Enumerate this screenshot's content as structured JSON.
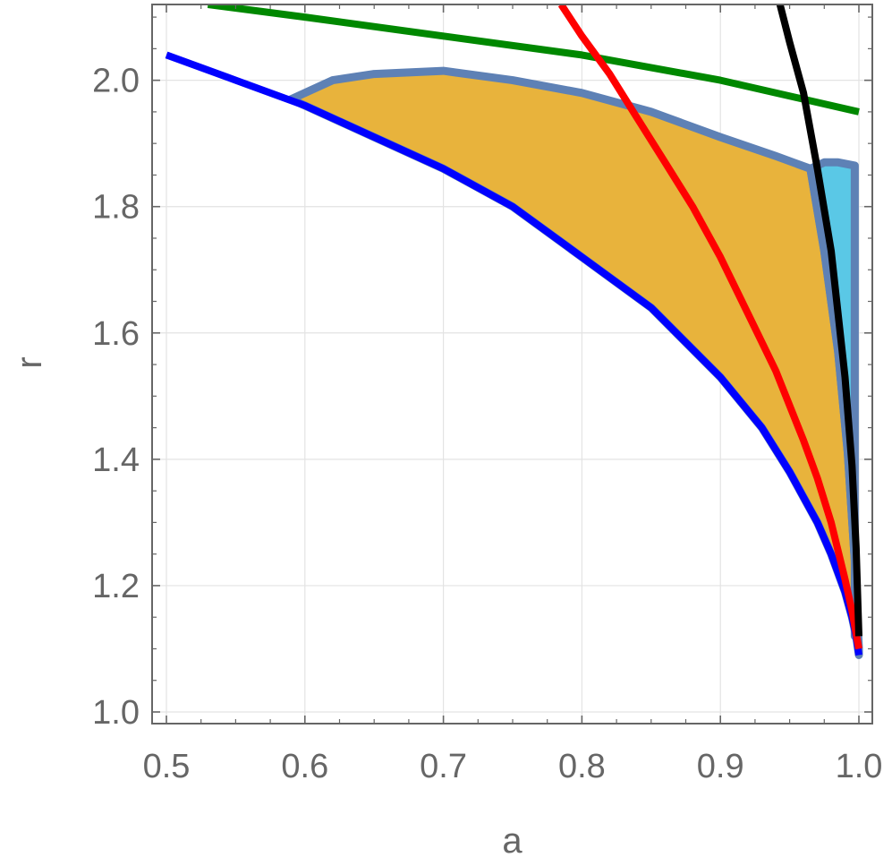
{
  "chart_data": {
    "type": "line",
    "title": "",
    "xlabel": "a",
    "ylabel": "r",
    "xlim": [
      0.5,
      1.0
    ],
    "ylim": [
      1.0,
      2.12
    ],
    "grid": true,
    "x_ticks": [
      0.5,
      0.6,
      0.7,
      0.8,
      0.9,
      1.0
    ],
    "x_tick_labels": [
      "0.5",
      "0.6",
      "0.7",
      "0.8",
      "0.9",
      "1.0"
    ],
    "y_ticks": [
      1.0,
      1.2,
      1.4,
      1.6,
      1.8,
      2.0
    ],
    "y_tick_labels": [
      "1.0",
      "1.2",
      "1.4",
      "1.6",
      "1.8",
      "2.0"
    ],
    "series": [
      {
        "color": "#0000ff",
        "x": [
          0.5,
          0.55,
          0.6,
          0.65,
          0.7,
          0.75,
          0.8,
          0.85,
          0.9,
          0.93,
          0.95,
          0.97,
          0.98,
          0.99,
          0.995,
          0.998,
          1.0
        ],
        "y": [
          2.04,
          2.0,
          1.96,
          1.91,
          1.86,
          1.8,
          1.72,
          1.64,
          1.53,
          1.45,
          1.38,
          1.3,
          1.25,
          1.19,
          1.15,
          1.12,
          1.09
        ]
      },
      {
        "color": "#ff0000",
        "x": [
          0.785,
          0.8,
          0.82,
          0.84,
          0.86,
          0.88,
          0.9,
          0.92,
          0.94,
          0.96,
          0.97,
          0.98,
          0.99,
          0.995,
          1.0
        ],
        "y": [
          2.12,
          2.07,
          2.01,
          1.94,
          1.87,
          1.8,
          1.72,
          1.63,
          1.54,
          1.43,
          1.37,
          1.3,
          1.21,
          1.16,
          1.1
        ]
      },
      {
        "color": "#000000",
        "x": [
          0.943,
          0.95,
          0.96,
          0.97,
          0.98,
          0.99,
          0.995,
          0.998,
          1.0
        ],
        "y": [
          2.12,
          2.06,
          1.98,
          1.86,
          1.73,
          1.53,
          1.39,
          1.26,
          1.12
        ]
      },
      {
        "color": "#008800",
        "x": [
          0.53,
          0.6,
          0.7,
          0.8,
          0.9,
          1.0
        ],
        "y": [
          2.12,
          2.1,
          2.07,
          2.04,
          2.0,
          1.95
        ]
      }
    ],
    "regions": [
      {
        "fill": "#e8b33c",
        "edge": "#5e81b5",
        "upper": {
          "x": [
            0.59,
            0.62,
            0.65,
            0.7,
            0.75,
            0.8,
            0.85,
            0.9,
            0.94,
            0.965
          ],
          "y": [
            1.97,
            2.0,
            2.01,
            2.015,
            2.0,
            1.98,
            1.95,
            1.91,
            1.88,
            1.86
          ]
        },
        "right_edge": {
          "x": [
            0.965,
            0.975,
            0.985,
            0.992,
            0.997,
            1.0
          ],
          "y": [
            1.86,
            1.73,
            1.57,
            1.41,
            1.24,
            1.1
          ]
        }
      },
      {
        "fill": "#5ac8e6",
        "edge": "#5e81b5",
        "upper": {
          "x": [
            0.965,
            0.975,
            0.985,
            0.997
          ],
          "y": [
            1.86,
            1.87,
            1.87,
            1.865
          ]
        },
        "right_x": 0.997,
        "bottom_y": 1.12
      }
    ]
  }
}
